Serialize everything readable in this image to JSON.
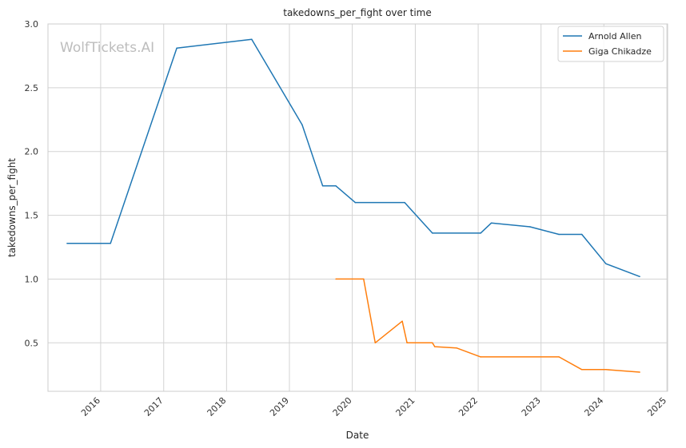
{
  "chart_data": {
    "type": "line",
    "title": "takedowns_per_fight over time",
    "xlabel": "Date",
    "ylabel": "takedowns_per_fight",
    "watermark": "WolfTickets.AI",
    "x_ticks": [
      "2016-01-01",
      "2017-01-01",
      "2018-01-01",
      "2019-01-01",
      "2020-01-01",
      "2021-01-01",
      "2022-01-01",
      "2023-01-01",
      "2024-01-01",
      "2025-01-01"
    ],
    "x_tick_labels": [
      "2016",
      "2017",
      "2018",
      "2019",
      "2020",
      "2021",
      "2022",
      "2023",
      "2024",
      "2025"
    ],
    "y_ticks": [
      0.5,
      1.0,
      1.5,
      2.0,
      2.5,
      3.0
    ],
    "y_tick_labels": [
      "0.5",
      "1.0",
      "1.5",
      "2.0",
      "2.5",
      "3.0"
    ],
    "xlim": [
      "2015-03-01",
      "2025-01-05"
    ],
    "ylim": [
      0.12,
      3.0
    ],
    "grid": true,
    "legend_position": "top-right",
    "series": [
      {
        "name": "Arnold Allen",
        "color": "#1f77b4",
        "points": [
          [
            "2015-06-20",
            1.28
          ],
          [
            "2016-02-27",
            1.28
          ],
          [
            "2017-03-18",
            2.81
          ],
          [
            "2018-05-27",
            2.88
          ],
          [
            "2019-03-16",
            2.21
          ],
          [
            "2019-07-13",
            1.73
          ],
          [
            "2019-09-28",
            1.73
          ],
          [
            "2020-01-18",
            1.6
          ],
          [
            "2020-10-31",
            1.6
          ],
          [
            "2021-04-10",
            1.36
          ],
          [
            "2022-01-15",
            1.36
          ],
          [
            "2022-03-19",
            1.44
          ],
          [
            "2022-10-29",
            1.41
          ],
          [
            "2023-04-15",
            1.35
          ],
          [
            "2023-08-26",
            1.35
          ],
          [
            "2024-01-13",
            1.12
          ],
          [
            "2024-07-27",
            1.02
          ]
        ]
      },
      {
        "name": "Giga Chikadze",
        "color": "#ff7f0e",
        "points": [
          [
            "2019-09-28",
            1.0
          ],
          [
            "2020-03-07",
            1.0
          ],
          [
            "2020-05-13",
            0.5
          ],
          [
            "2020-10-17",
            0.67
          ],
          [
            "2020-11-14",
            0.5
          ],
          [
            "2021-04-10",
            0.5
          ],
          [
            "2021-04-24",
            0.47
          ],
          [
            "2021-08-28",
            0.46
          ],
          [
            "2022-01-15",
            0.39
          ],
          [
            "2023-04-15",
            0.39
          ],
          [
            "2023-08-26",
            0.29
          ],
          [
            "2024-01-13",
            0.29
          ],
          [
            "2024-07-27",
            0.27
          ]
        ]
      }
    ]
  }
}
